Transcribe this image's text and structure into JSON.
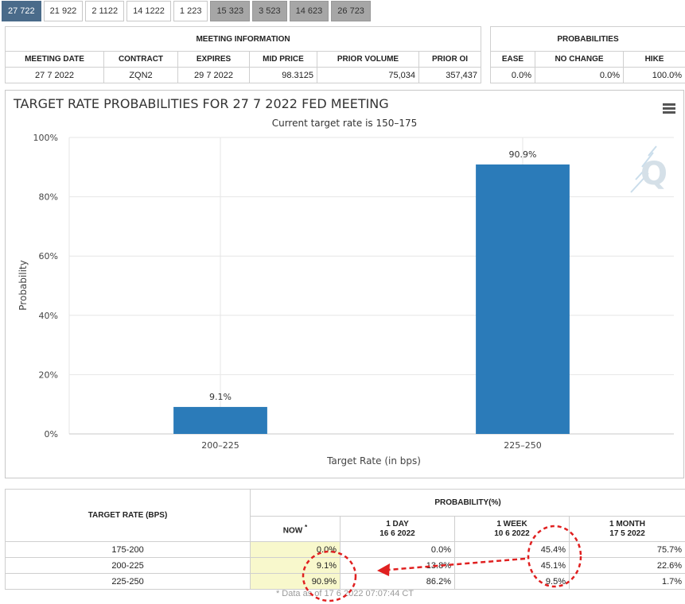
{
  "tabs": [
    {
      "label": "27 722",
      "state": "active"
    },
    {
      "label": "21 922",
      "state": "normal"
    },
    {
      "label": "2 1122",
      "state": "normal"
    },
    {
      "label": "14 1222",
      "state": "normal"
    },
    {
      "label": "1 223",
      "state": "normal"
    },
    {
      "label": "15 323",
      "state": "grey"
    },
    {
      "label": "3 523",
      "state": "grey"
    },
    {
      "label": "14 623",
      "state": "grey"
    },
    {
      "label": "26 723",
      "state": "grey"
    }
  ],
  "meeting_info": {
    "title": "MEETING INFORMATION",
    "headers": [
      "MEETING DATE",
      "CONTRACT",
      "EXPIRES",
      "MID PRICE",
      "PRIOR VOLUME",
      "PRIOR OI"
    ],
    "row": [
      "27 7 2022",
      "ZQN2",
      "29 7 2022",
      "98.3125",
      "75,034",
      "357,437"
    ]
  },
  "probabilities": {
    "title": "PROBABILITIES",
    "headers": [
      "EASE",
      "NO CHANGE",
      "HIKE"
    ],
    "row": [
      "0.0%",
      "0.0%",
      "100.0%"
    ]
  },
  "chart_data": {
    "type": "bar",
    "title": "TARGET RATE PROBABILITIES FOR 27 7 2022 FED MEETING",
    "subtitle": "Current target rate is 150–175",
    "xlabel": "Target Rate (in bps)",
    "ylabel": "Probability",
    "categories": [
      "200–225",
      "225–250"
    ],
    "values": [
      9.1,
      90.9
    ],
    "data_labels": [
      "9.1%",
      "90.9%"
    ],
    "ylim": [
      0,
      100
    ],
    "yticks": [
      0,
      20,
      40,
      60,
      80,
      100
    ],
    "ytick_labels": [
      "0%",
      "20%",
      "40%",
      "60%",
      "80%",
      "100%"
    ],
    "bar_color": "#2b7bb9",
    "grid": true,
    "legend": "none"
  },
  "menu_icon": "hamburger-menu-icon",
  "watermark_icon": "q-logo-icon",
  "history": {
    "col_target": "TARGET RATE (BPS)",
    "col_prob": "PROBABILITY(%)",
    "subheaders": [
      {
        "label": "NOW",
        "date": ""
      },
      {
        "label": "1 DAY",
        "date": "16 6 2022"
      },
      {
        "label": "1 WEEK",
        "date": "10 6 2022"
      },
      {
        "label": "1 MONTH",
        "date": "17 5 2022"
      }
    ],
    "now_mark": "*",
    "rows": [
      {
        "rate": "175-200",
        "values": [
          "0.0%",
          "0.0%",
          "45.4%",
          "75.7%"
        ]
      },
      {
        "rate": "200-225",
        "values": [
          "9.1%",
          "13.8%",
          "45.1%",
          "22.6%"
        ]
      },
      {
        "rate": "225-250",
        "values": [
          "90.9%",
          "86.2%",
          "9.5%",
          "1.7%"
        ]
      }
    ],
    "footnote": "* Data as of 17 6 2022 07:07:44 CT"
  },
  "annotation_color": "#e02020"
}
